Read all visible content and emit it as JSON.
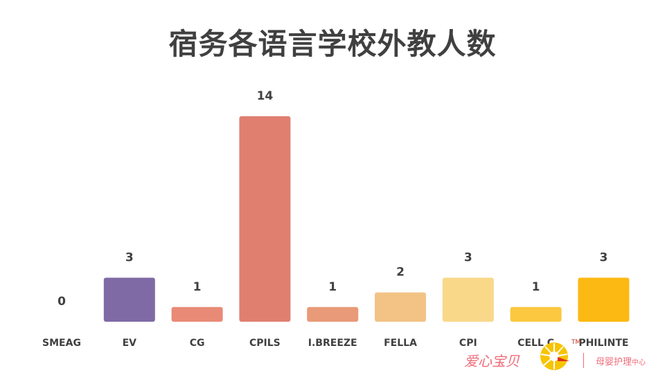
{
  "chart_data": {
    "type": "bar",
    "title": "宿务各语言学校外教人数",
    "categories": [
      "SMEAG",
      "EV",
      "CG",
      "CPILS",
      "I.BREEZE",
      "FELLA",
      "CPI",
      "CELL C",
      "PHILINTE"
    ],
    "values": [
      0,
      3,
      1,
      14,
      1,
      2,
      3,
      1,
      3
    ],
    "colors": [
      "#7f6aa6",
      "#7f6aa6",
      "#e98a76",
      "#e07f70",
      "#e99a78",
      "#f3c386",
      "#f9d88a",
      "#fbc83f",
      "#fdb913"
    ],
    "data_labels": true,
    "grid": false,
    "legend": "none",
    "ylim": [
      0,
      14
    ]
  },
  "logo": {
    "brand_text": "爱心宝贝",
    "tm_text": "TM",
    "sub_text": "母婴护理",
    "sub_small": "中心"
  }
}
